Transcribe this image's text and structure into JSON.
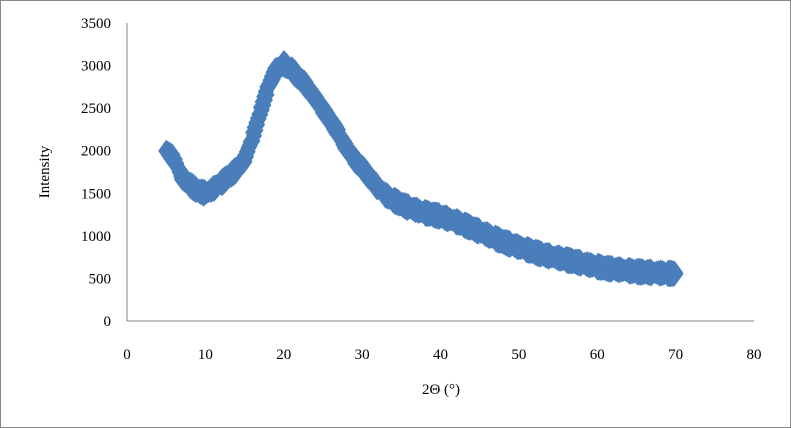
{
  "chart_data": {
    "type": "scatter",
    "title": "",
    "xlabel": "2Θ (°)",
    "ylabel": "Intensity",
    "xlim": [
      0,
      80
    ],
    "ylim": [
      0,
      3500
    ],
    "xticks": [
      0,
      10,
      20,
      30,
      40,
      50,
      60,
      70,
      80
    ],
    "yticks": [
      0,
      500,
      1000,
      1500,
      2000,
      2500,
      3000,
      3500
    ],
    "grid": false,
    "legend": "none",
    "marker": "diamond",
    "color": "#4a7ebb",
    "series": [
      {
        "name": "Intensity",
        "x": [
          5,
          6,
          7,
          8,
          9,
          10,
          11,
          12,
          13,
          14,
          15,
          16,
          17,
          18,
          19,
          20,
          21,
          22,
          23,
          24,
          25,
          26,
          27,
          28,
          29,
          30,
          31,
          32,
          33,
          34,
          35,
          36,
          37,
          38,
          39,
          40,
          41,
          42,
          43,
          44,
          45,
          46,
          47,
          48,
          49,
          50,
          51,
          52,
          53,
          54,
          55,
          56,
          57,
          58,
          59,
          60,
          61,
          62,
          63,
          64,
          65,
          66,
          67,
          68,
          69,
          70
        ],
        "y": [
          2000,
          1900,
          1700,
          1600,
          1530,
          1500,
          1550,
          1620,
          1700,
          1780,
          1900,
          2150,
          2450,
          2750,
          2950,
          3020,
          2950,
          2850,
          2750,
          2620,
          2480,
          2350,
          2200,
          2030,
          1900,
          1800,
          1680,
          1570,
          1480,
          1420,
          1370,
          1330,
          1300,
          1270,
          1250,
          1230,
          1200,
          1170,
          1130,
          1090,
          1050,
          1010,
          970,
          930,
          900,
          870,
          840,
          810,
          780,
          760,
          740,
          720,
          700,
          680,
          660,
          640,
          620,
          610,
          600,
          590,
          580,
          575,
          570,
          565,
          560,
          555
        ]
      }
    ]
  }
}
